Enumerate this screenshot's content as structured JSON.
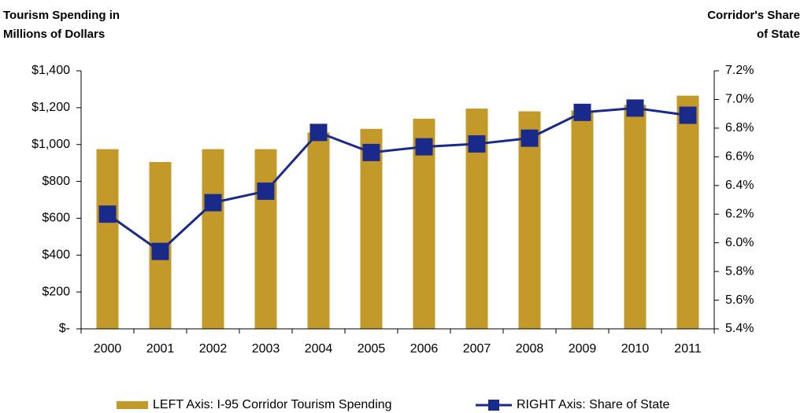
{
  "chart_data": {
    "type": "bar-line",
    "ylabel": [
      "Tourism Spending in",
      "Millions of Dollars"
    ],
    "y2label": [
      "Corridor's Share",
      "of State"
    ],
    "categories": [
      "2000",
      "2001",
      "2002",
      "2003",
      "2004",
      "2005",
      "2006",
      "2007",
      "2008",
      "2009",
      "2010",
      "2011"
    ],
    "series": [
      {
        "name": "LEFT Axis: I-95 Corridor Tourism Spending",
        "type": "bar",
        "color": "#c39a2a",
        "axis": "y",
        "values": [
          975,
          905,
          975,
          975,
          1065,
          1085,
          1140,
          1195,
          1180,
          1185,
          1215,
          1265
        ]
      },
      {
        "name": "RIGHT Axis: Share of State",
        "type": "line",
        "color": "#1a2a8a",
        "axis": "y2",
        "values": [
          6.2,
          5.94,
          6.28,
          6.36,
          6.77,
          6.63,
          6.67,
          6.69,
          6.73,
          6.91,
          6.94,
          6.89
        ]
      }
    ],
    "ylim": [
      0,
      1400
    ],
    "yticks": [
      {
        "value": 0,
        "label": "$-"
      },
      {
        "value": 200,
        "label": "$200"
      },
      {
        "value": 400,
        "label": "$400"
      },
      {
        "value": 600,
        "label": "$600"
      },
      {
        "value": 800,
        "label": "$800"
      },
      {
        "value": 1000,
        "label": "$1,000"
      },
      {
        "value": 1200,
        "label": "$1,200"
      },
      {
        "value": 1400,
        "label": "$1,400"
      }
    ],
    "y2lim": [
      5.4,
      7.2
    ],
    "y2ticks": [
      {
        "value": 5.4,
        "label": "5.4%"
      },
      {
        "value": 5.6,
        "label": "5.6%"
      },
      {
        "value": 5.8,
        "label": "5.8%"
      },
      {
        "value": 6.0,
        "label": "6.0%"
      },
      {
        "value": 6.2,
        "label": "6.2%"
      },
      {
        "value": 6.4,
        "label": "6.4%"
      },
      {
        "value": 6.6,
        "label": "6.6%"
      },
      {
        "value": 6.8,
        "label": "6.8%"
      },
      {
        "value": 7.0,
        "label": "7.0%"
      },
      {
        "value": 7.2,
        "label": "7.2%"
      }
    ],
    "grid": false,
    "legend": "bottom"
  }
}
